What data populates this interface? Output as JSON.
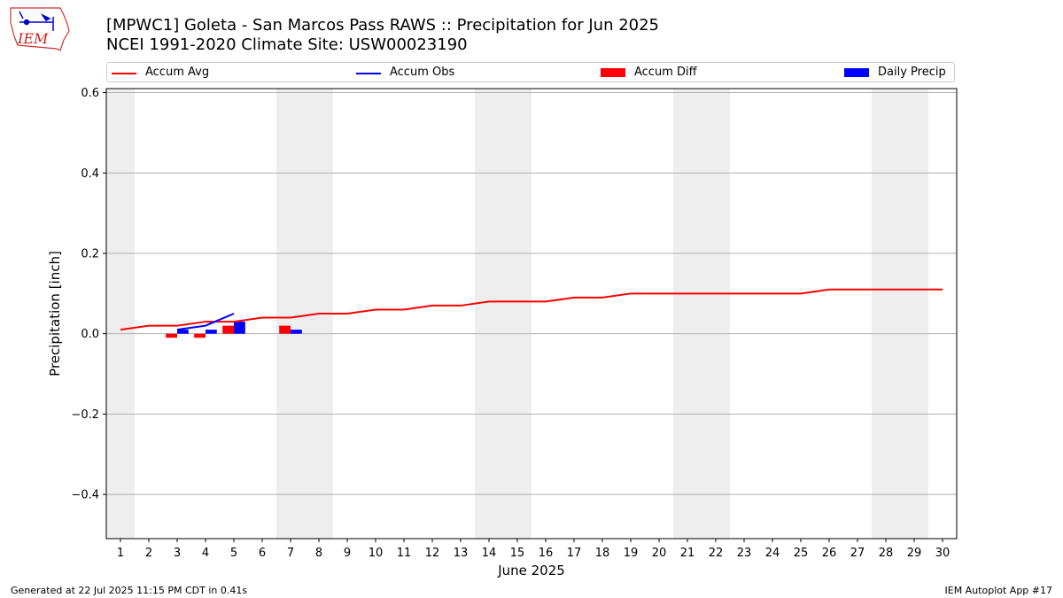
{
  "header": {
    "title_line1": "[MPWC1] Goleta - San Marcos Pass RAWS :: Precipitation for Jun 2025",
    "title_line2": "NCEI 1991-2020 Climate Site: USW00023190",
    "logo_text": "IEM"
  },
  "legend": {
    "items": [
      {
        "label": "Accum Avg",
        "kind": "line",
        "color": "#ff0000"
      },
      {
        "label": "Accum Obs",
        "kind": "line",
        "color": "#0000ff"
      },
      {
        "label": "Accum Diff",
        "kind": "box",
        "color": "#ff0000"
      },
      {
        "label": "Daily Precip",
        "kind": "box",
        "color": "#0000ff"
      }
    ]
  },
  "footer": {
    "left": "Generated at 22 Jul 2025 11:15 PM CDT in 0.41s",
    "right": "IEM Autoplot App #17"
  },
  "chart_data": {
    "type": "line",
    "title": "[MPWC1] Goleta - San Marcos Pass RAWS :: Precipitation for Jun 2025",
    "subtitle": "NCEI 1991-2020 Climate Site: USW00023190",
    "xlabel": "June 2025",
    "ylabel": "Precipitation [inch]",
    "ylim": [
      -0.51,
      0.61
    ],
    "xlim": [
      0.5,
      30.5
    ],
    "yticks": [
      -0.4,
      -0.2,
      0.0,
      0.2,
      0.4,
      0.6
    ],
    "ytick_labels": [
      "−0.4",
      "−0.2",
      "0.0",
      "0.2",
      "0.4",
      "0.6"
    ],
    "x": [
      1,
      2,
      3,
      4,
      5,
      6,
      7,
      8,
      9,
      10,
      11,
      12,
      13,
      14,
      15,
      16,
      17,
      18,
      19,
      20,
      21,
      22,
      23,
      24,
      25,
      26,
      27,
      28,
      29,
      30
    ],
    "grid": "horizontal",
    "legend_position": "top",
    "weekend_shading": [
      1,
      7,
      8,
      14,
      15,
      21,
      22,
      28,
      29
    ],
    "shade_color": "#eeeeee",
    "series": [
      {
        "name": "Accum Avg",
        "type": "line",
        "color": "#ff0000",
        "x": [
          1,
          2,
          3,
          4,
          5,
          6,
          7,
          8,
          9,
          10,
          11,
          12,
          13,
          14,
          15,
          16,
          17,
          18,
          19,
          20,
          21,
          22,
          23,
          24,
          25,
          26,
          27,
          28,
          29,
          30
        ],
        "values": [
          0.01,
          0.02,
          0.02,
          0.03,
          0.03,
          0.04,
          0.04,
          0.05,
          0.05,
          0.06,
          0.06,
          0.07,
          0.07,
          0.08,
          0.08,
          0.08,
          0.09,
          0.09,
          0.1,
          0.1,
          0.1,
          0.1,
          0.1,
          0.1,
          0.1,
          0.11,
          0.11,
          0.11,
          0.11,
          0.11
        ]
      },
      {
        "name": "Accum Obs",
        "type": "line",
        "color": "#0000ff",
        "x": [
          3,
          4,
          5
        ],
        "values": [
          0.01,
          0.02,
          0.05
        ]
      },
      {
        "name": "Accum Diff",
        "type": "bar",
        "color": "#ff0000",
        "x": [
          3,
          4,
          5,
          7
        ],
        "values": [
          -0.01,
          -0.01,
          0.02,
          0.02
        ]
      },
      {
        "name": "Daily Precip",
        "type": "bar",
        "color": "#0000ff",
        "x": [
          3,
          4,
          5,
          7
        ],
        "values": [
          0.01,
          0.01,
          0.03,
          0.01
        ]
      }
    ]
  }
}
